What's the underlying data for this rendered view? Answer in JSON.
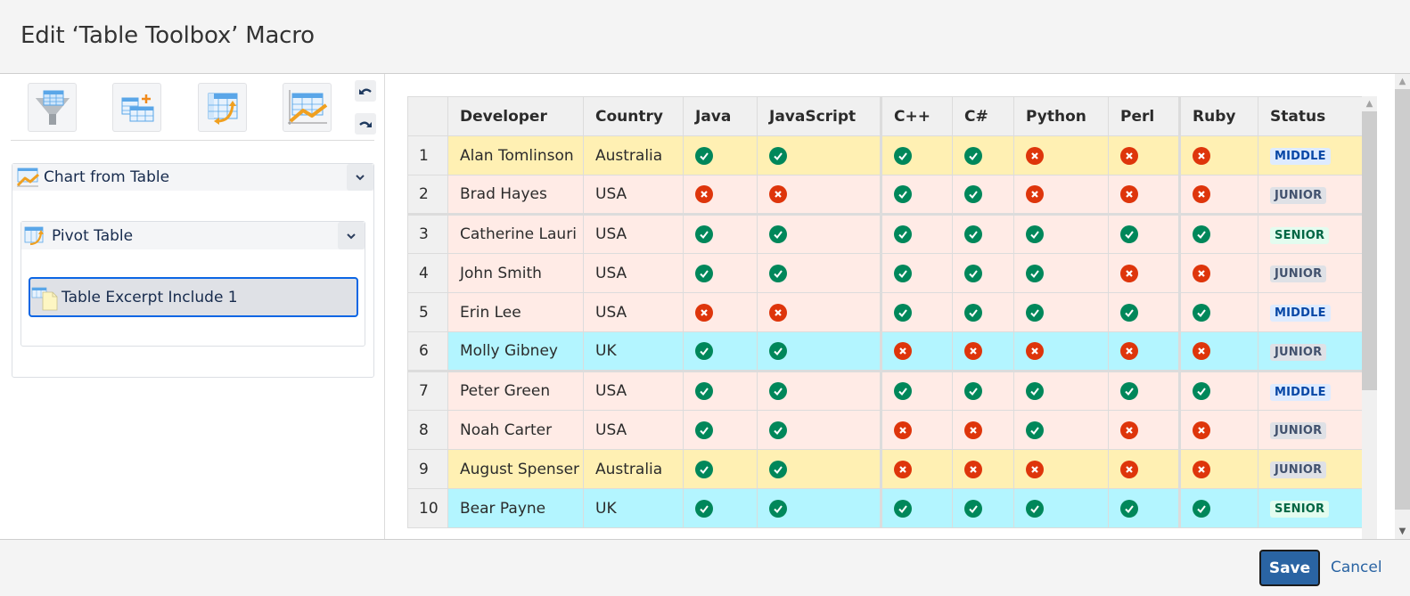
{
  "dialog": {
    "title": "Edit ‘Table Toolbox’ Macro"
  },
  "toolbar": {
    "buttons": [
      {
        "name": "table-filter",
        "icon": "table-filter-icon"
      },
      {
        "name": "table-transformer",
        "icon": "table-transformer-icon"
      },
      {
        "name": "pivot-table",
        "icon": "pivot-table-icon"
      },
      {
        "name": "chart-from-table",
        "icon": "chart-from-table-icon"
      }
    ],
    "undo_icon": "undo-icon",
    "redo_icon": "redo-icon"
  },
  "tree": {
    "outer": {
      "label": "Chart from Table",
      "icon": "chart-from-table-icon"
    },
    "middle": {
      "label": "Pivot Table",
      "icon": "pivot-table-icon"
    },
    "inner": {
      "label": "Table Excerpt Include 1",
      "icon": "table-excerpt-include-icon"
    }
  },
  "table": {
    "columns": [
      "",
      "Developer",
      "Country",
      "Java",
      "JavaScript",
      "C++",
      "C#",
      "Python",
      "Perl",
      "Ruby",
      "Status"
    ],
    "rows": [
      {
        "num": "1",
        "developer": "Alan Tomlinson",
        "country": "Australia",
        "color": "yellow",
        "skills": [
          1,
          1,
          1,
          1,
          0,
          0,
          0
        ],
        "status": "MIDDLE"
      },
      {
        "num": "2",
        "developer": "Brad Hayes",
        "country": "USA",
        "color": "pink",
        "skills": [
          0,
          0,
          1,
          1,
          0,
          0,
          0
        ],
        "status": "JUNIOR"
      },
      {
        "num": "3",
        "developer": "Catherine Lauri",
        "country": "USA",
        "color": "pink",
        "skills": [
          1,
          1,
          1,
          1,
          1,
          1,
          1
        ],
        "status": "SENIOR"
      },
      {
        "num": "4",
        "developer": "John Smith",
        "country": "USA",
        "color": "pink",
        "skills": [
          1,
          1,
          1,
          1,
          1,
          0,
          0
        ],
        "status": "JUNIOR"
      },
      {
        "num": "5",
        "developer": "Erin Lee",
        "country": "USA",
        "color": "pink",
        "skills": [
          0,
          0,
          1,
          1,
          1,
          1,
          1
        ],
        "status": "MIDDLE"
      },
      {
        "num": "6",
        "developer": "Molly Gibney",
        "country": "UK",
        "color": "cyan",
        "skills": [
          1,
          1,
          0,
          0,
          0,
          0,
          0
        ],
        "status": "JUNIOR"
      },
      {
        "num": "7",
        "developer": "Peter Green",
        "country": "USA",
        "color": "pink",
        "skills": [
          1,
          1,
          1,
          1,
          1,
          1,
          1
        ],
        "status": "MIDDLE"
      },
      {
        "num": "8",
        "developer": "Noah Carter",
        "country": "USA",
        "color": "pink",
        "skills": [
          1,
          1,
          0,
          0,
          1,
          0,
          0
        ],
        "status": "JUNIOR"
      },
      {
        "num": "9",
        "developer": "August Spenser",
        "country": "Australia",
        "color": "yellow",
        "skills": [
          1,
          1,
          0,
          0,
          0,
          0,
          0
        ],
        "status": "JUNIOR"
      },
      {
        "num": "10",
        "developer": "Bear Payne",
        "country": "UK",
        "color": "cyan",
        "skills": [
          1,
          1,
          1,
          1,
          1,
          1,
          1
        ],
        "status": "SENIOR"
      }
    ]
  },
  "colors": {
    "row_yellow": "#fff0b3",
    "row_pink": "#ffebe6",
    "row_cyan": "#b3f5ff",
    "check": "#00875a",
    "cross": "#de350b",
    "accent": "#2a64a3"
  },
  "footer": {
    "save_label": "Save",
    "cancel_label": "Cancel"
  }
}
